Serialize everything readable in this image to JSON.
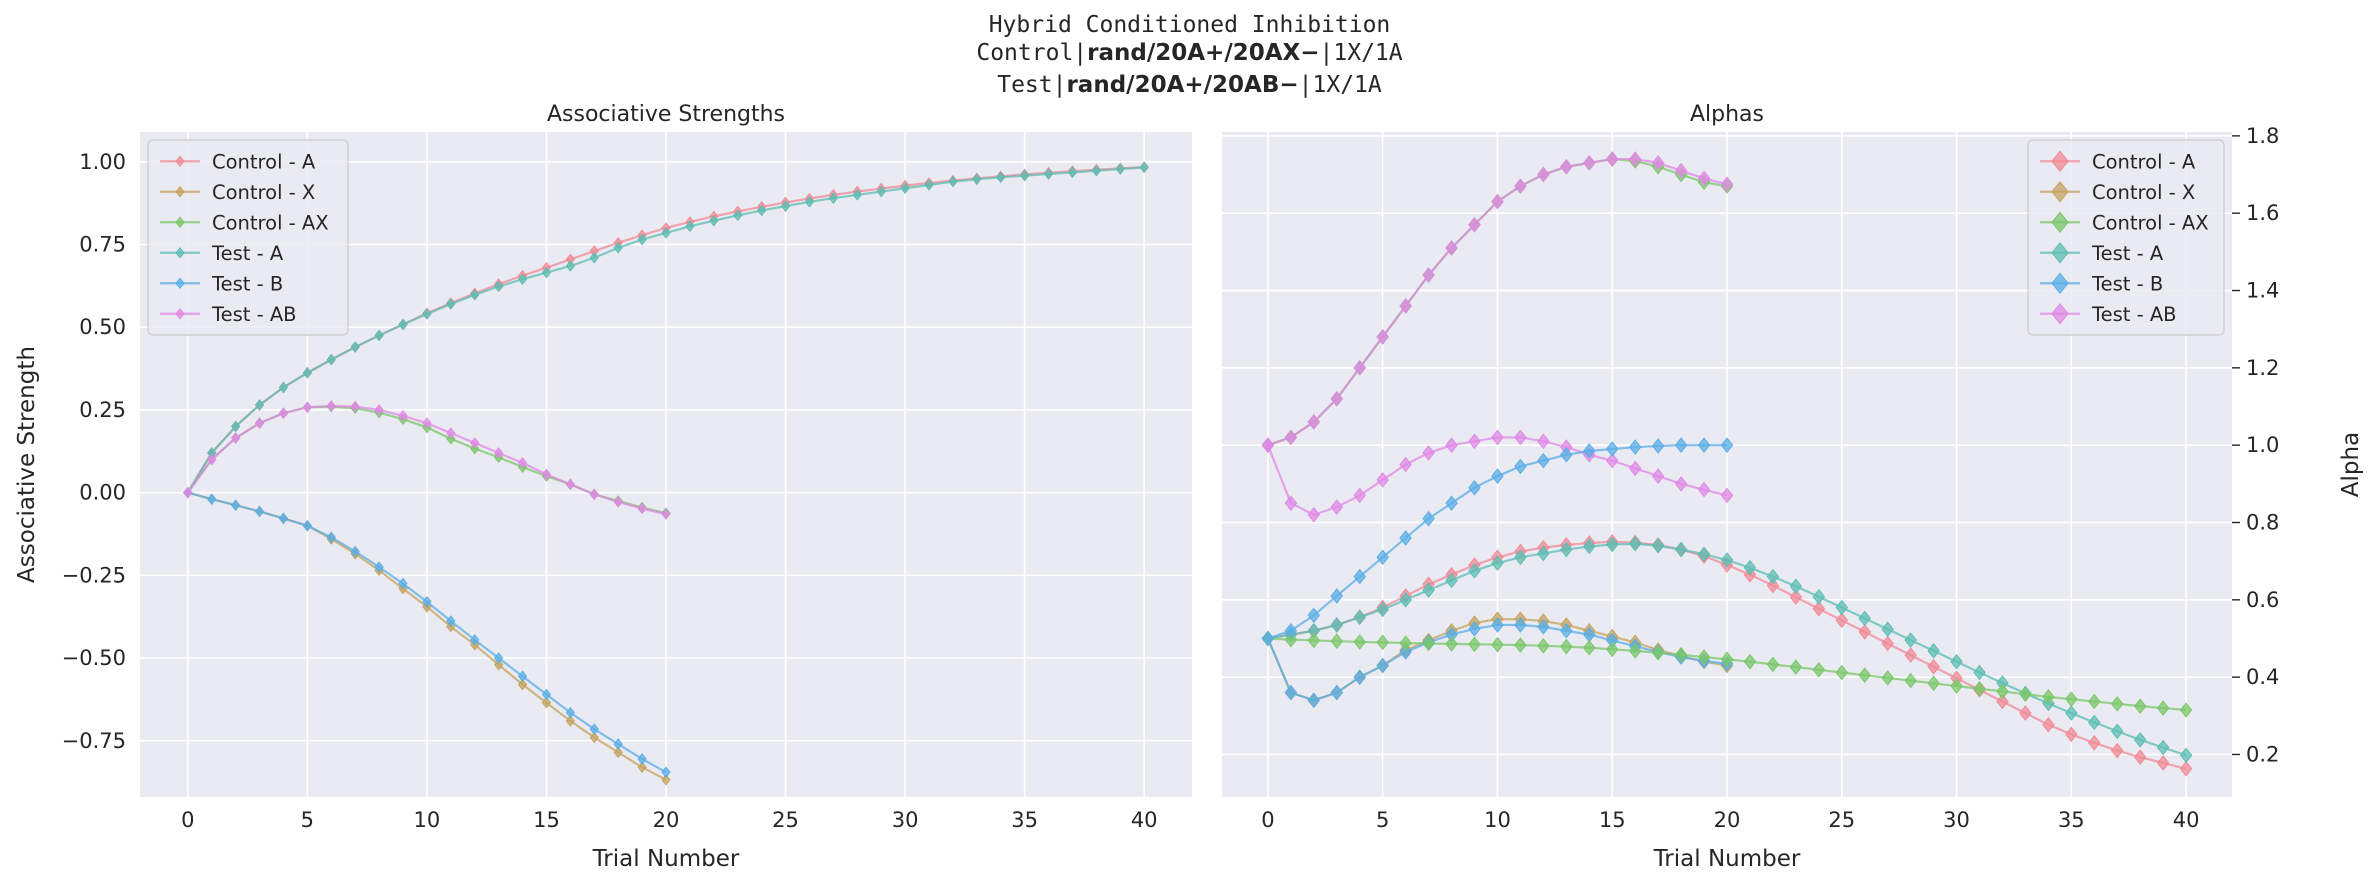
{
  "figure": {
    "title_line1": "Hybrid Conditioned Inhibition",
    "title_line2_prefix": "Control|",
    "title_line2_bold": "rand/20A+/20AX−",
    "title_line2_suffix": "|1X/1A",
    "title_line3_prefix": "Test|",
    "title_line3_bold": "rand/20A+/20AB−",
    "title_line3_suffix": "|1X/1A"
  },
  "colors": {
    "plot_bg": "#eaeaf2",
    "grid": "#ffffff",
    "Control - A": "#f08a95",
    "Control - X": "#c4a35f",
    "Control - AX": "#79c76a",
    "Test - A": "#5cbdb3",
    "Test - B": "#5aaee6",
    "Test - AB": "#e088e6"
  },
  "chart_data": [
    {
      "type": "line",
      "title": "Associative Strengths",
      "xlabel": "Trial Number",
      "ylabel": "Associative Strength",
      "xlim": [
        -2,
        42
      ],
      "ylim": [
        -0.92,
        1.09
      ],
      "xticks": [
        0,
        5,
        10,
        15,
        20,
        25,
        30,
        35,
        40
      ],
      "yticks": [
        -0.75,
        -0.5,
        -0.25,
        0.0,
        0.25,
        0.5,
        0.75,
        1.0
      ],
      "ytick_labels": [
        "−0.75",
        "−0.50",
        "−0.25",
        "0.00",
        "0.25",
        "0.50",
        "0.75",
        "1.00"
      ],
      "grid": true,
      "legend": "top-left",
      "series": [
        {
          "name": "Control - A",
          "x": [
            0,
            1,
            2,
            3,
            4,
            5,
            6,
            7,
            8,
            9,
            10,
            11,
            12,
            13,
            14,
            15,
            16,
            17,
            18,
            19,
            20,
            21,
            22,
            23,
            24,
            25,
            26,
            27,
            28,
            29,
            30,
            31,
            32,
            33,
            34,
            35,
            36,
            37,
            38,
            39,
            40
          ],
          "values": [
            0,
            0.12,
            0.2,
            0.265,
            0.318,
            0.362,
            0.402,
            0.44,
            0.475,
            0.508,
            0.542,
            0.573,
            0.602,
            0.63,
            0.656,
            0.68,
            0.705,
            0.73,
            0.755,
            0.778,
            0.8,
            0.818,
            0.835,
            0.85,
            0.864,
            0.877,
            0.889,
            0.9,
            0.91,
            0.919,
            0.928,
            0.936,
            0.943,
            0.95,
            0.956,
            0.962,
            0.967,
            0.972,
            0.976,
            0.98,
            0.984
          ]
        },
        {
          "name": "Control - X",
          "x": [
            0,
            1,
            2,
            3,
            4,
            5,
            6,
            7,
            8,
            9,
            10,
            11,
            12,
            13,
            14,
            15,
            16,
            17,
            18,
            19,
            20
          ],
          "values": [
            0,
            -0.02,
            -0.038,
            -0.057,
            -0.078,
            -0.1,
            -0.14,
            -0.185,
            -0.235,
            -0.29,
            -0.345,
            -0.405,
            -0.46,
            -0.52,
            -0.58,
            -0.635,
            -0.69,
            -0.74,
            -0.785,
            -0.83,
            -0.868
          ]
        },
        {
          "name": "Control - AX",
          "x": [
            0,
            1,
            2,
            3,
            4,
            5,
            6,
            7,
            8,
            9,
            10,
            11,
            12,
            13,
            14,
            15,
            16,
            17,
            18,
            19,
            20
          ],
          "values": [
            0,
            0.1,
            0.165,
            0.21,
            0.24,
            0.258,
            0.26,
            0.255,
            0.242,
            0.222,
            0.197,
            0.163,
            0.133,
            0.107,
            0.077,
            0.05,
            0.025,
            -0.005,
            -0.025,
            -0.045,
            -0.062
          ]
        },
        {
          "name": "Test - A",
          "x": [
            0,
            1,
            2,
            3,
            4,
            5,
            6,
            7,
            8,
            9,
            10,
            11,
            12,
            13,
            14,
            15,
            16,
            17,
            18,
            19,
            20,
            21,
            22,
            23,
            24,
            25,
            26,
            27,
            28,
            29,
            30,
            31,
            32,
            33,
            34,
            35,
            36,
            37,
            38,
            39,
            40
          ],
          "values": [
            0,
            0.12,
            0.2,
            0.265,
            0.318,
            0.362,
            0.402,
            0.44,
            0.475,
            0.508,
            0.54,
            0.57,
            0.598,
            0.623,
            0.645,
            0.665,
            0.685,
            0.71,
            0.74,
            0.765,
            0.785,
            0.805,
            0.822,
            0.838,
            0.853,
            0.866,
            0.879,
            0.89,
            0.9,
            0.91,
            0.92,
            0.93,
            0.94,
            0.947,
            0.953,
            0.958,
            0.963,
            0.968,
            0.973,
            0.978,
            0.983
          ]
        },
        {
          "name": "Test - B",
          "x": [
            0,
            1,
            2,
            3,
            4,
            5,
            6,
            7,
            8,
            9,
            10,
            11,
            12,
            13,
            14,
            15,
            16,
            17,
            18,
            19,
            20
          ],
          "values": [
            0,
            -0.02,
            -0.038,
            -0.057,
            -0.078,
            -0.1,
            -0.135,
            -0.178,
            -0.225,
            -0.275,
            -0.33,
            -0.388,
            -0.445,
            -0.5,
            -0.555,
            -0.61,
            -0.665,
            -0.715,
            -0.76,
            -0.805,
            -0.845
          ]
        },
        {
          "name": "Test - AB",
          "x": [
            0,
            1,
            2,
            3,
            4,
            5,
            6,
            7,
            8,
            9,
            10,
            11,
            12,
            13,
            14,
            15,
            16,
            17,
            18,
            19,
            20
          ],
          "values": [
            0,
            0.1,
            0.165,
            0.21,
            0.24,
            0.258,
            0.262,
            0.26,
            0.25,
            0.232,
            0.21,
            0.18,
            0.15,
            0.12,
            0.09,
            0.055,
            0.025,
            -0.005,
            -0.028,
            -0.048,
            -0.065
          ]
        }
      ]
    },
    {
      "type": "line",
      "title": "Alphas",
      "xlabel": "Trial Number",
      "ylabel": "Alpha",
      "xlim": [
        -2,
        42
      ],
      "ylim": [
        0.09,
        1.81
      ],
      "xticks": [
        0,
        5,
        10,
        15,
        20,
        25,
        30,
        35,
        40
      ],
      "yticks": [
        0.2,
        0.4,
        0.6,
        0.8,
        1.0,
        1.2,
        1.4,
        1.6,
        1.8
      ],
      "ytick_labels": [
        "0.2",
        "0.4",
        "0.6",
        "0.8",
        "1.0",
        "1.2",
        "1.4",
        "1.6",
        "1.8"
      ],
      "yaxis_side": "right",
      "grid": true,
      "legend": "top-right",
      "series": [
        {
          "name": "Control - A",
          "x": [
            0,
            1,
            2,
            3,
            4,
            5,
            6,
            7,
            8,
            9,
            10,
            11,
            12,
            13,
            14,
            15,
            16,
            17,
            18,
            19,
            20,
            21,
            22,
            23,
            24,
            25,
            26,
            27,
            28,
            29,
            30,
            31,
            32,
            33,
            34,
            35,
            36,
            37,
            38,
            39,
            40
          ],
          "values": [
            0.5,
            0.51,
            0.52,
            0.535,
            0.555,
            0.58,
            0.61,
            0.64,
            0.665,
            0.69,
            0.71,
            0.725,
            0.735,
            0.742,
            0.747,
            0.75,
            0.748,
            0.742,
            0.73,
            0.713,
            0.69,
            0.665,
            0.637,
            0.607,
            0.577,
            0.547,
            0.517,
            0.487,
            0.457,
            0.427,
            0.397,
            0.367,
            0.337,
            0.307,
            0.277,
            0.252,
            0.23,
            0.21,
            0.193,
            0.178,
            0.163
          ]
        },
        {
          "name": "Control - X",
          "x": [
            0,
            1,
            2,
            3,
            4,
            5,
            6,
            7,
            8,
            9,
            10,
            11,
            12,
            13,
            14,
            15,
            16,
            17,
            18,
            19,
            20
          ],
          "values": [
            0.5,
            0.36,
            0.34,
            0.36,
            0.4,
            0.43,
            0.47,
            0.495,
            0.52,
            0.54,
            0.55,
            0.55,
            0.545,
            0.535,
            0.52,
            0.505,
            0.49,
            0.47,
            0.455,
            0.44,
            0.43
          ]
        },
        {
          "name": "Control - AX",
          "x": [
            0,
            1,
            2,
            3,
            4,
            5,
            6,
            7,
            8,
            9,
            10,
            11,
            12,
            13,
            14,
            15,
            16,
            17,
            18,
            19,
            20
          ],
          "values": [
            1.0,
            1.02,
            1.06,
            1.12,
            1.2,
            1.28,
            1.36,
            1.44,
            1.51,
            1.57,
            1.63,
            1.67,
            1.7,
            1.72,
            1.73,
            1.74,
            1.735,
            1.72,
            1.7,
            1.68,
            1.67
          ]
        },
        {
          "name": "Test - A",
          "x": [
            0,
            1,
            2,
            3,
            4,
            5,
            6,
            7,
            8,
            9,
            10,
            11,
            12,
            13,
            14,
            15,
            16,
            17,
            18,
            19,
            20,
            21,
            22,
            23,
            24,
            25,
            26,
            27,
            28,
            29,
            30,
            31,
            32,
            33,
            34,
            35,
            36,
            37,
            38,
            39,
            40
          ],
          "values": [
            0.5,
            0.51,
            0.52,
            0.535,
            0.555,
            0.575,
            0.6,
            0.625,
            0.65,
            0.675,
            0.695,
            0.71,
            0.72,
            0.73,
            0.738,
            0.743,
            0.745,
            0.74,
            0.73,
            0.718,
            0.703,
            0.683,
            0.66,
            0.635,
            0.608,
            0.58,
            0.552,
            0.524,
            0.496,
            0.468,
            0.44,
            0.412,
            0.385,
            0.358,
            0.332,
            0.307,
            0.283,
            0.26,
            0.238,
            0.218,
            0.198
          ]
        },
        {
          "name": "Test - B",
          "x": [
            0,
            1,
            2,
            3,
            4,
            5,
            6,
            7,
            8,
            9,
            10,
            11,
            12,
            13,
            14,
            15,
            16,
            17,
            18,
            19,
            20
          ],
          "values": [
            0.5,
            0.36,
            0.34,
            0.36,
            0.4,
            0.43,
            0.465,
            0.49,
            0.51,
            0.525,
            0.535,
            0.535,
            0.53,
            0.52,
            0.51,
            0.495,
            0.48,
            0.465,
            0.452,
            0.442,
            0.435
          ]
        },
        {
          "name": "Test - AB",
          "x": [
            0,
            1,
            2,
            3,
            4,
            5,
            6,
            7,
            8,
            9,
            10,
            11,
            12,
            13,
            14,
            15,
            16,
            17,
            18,
            19,
            20
          ],
          "values": [
            1.0,
            1.02,
            1.06,
            1.12,
            1.2,
            1.28,
            1.36,
            1.44,
            1.51,
            1.57,
            1.63,
            1.67,
            1.7,
            1.72,
            1.73,
            1.74,
            1.74,
            1.73,
            1.71,
            1.69,
            1.675
          ]
        },
        {
          "name": "",
          "x": [
            0,
            1,
            2,
            3,
            4,
            5,
            6,
            7,
            8,
            9,
            10,
            11,
            12,
            13,
            14,
            15,
            16,
            17,
            18,
            19,
            20,
            21,
            22,
            23,
            24,
            25,
            26,
            27,
            28,
            29,
            30,
            31,
            32,
            33,
            34,
            35,
            36,
            37,
            38,
            39,
            40
          ],
          "values": [
            0.5,
            0.497,
            0.495,
            0.493,
            0.491,
            0.49,
            0.488,
            0.487,
            0.486,
            0.485,
            0.484,
            0.483,
            0.481,
            0.479,
            0.476,
            0.472,
            0.468,
            0.463,
            0.458,
            0.452,
            0.446,
            0.44,
            0.433,
            0.426,
            0.419,
            0.412,
            0.405,
            0.398,
            0.391,
            0.384,
            0.377,
            0.37,
            0.363,
            0.356,
            0.349,
            0.343,
            0.337,
            0.331,
            0.325,
            0.32,
            0.315
          ]
        },
        {
          "name": "",
          "x": [
            0,
            1,
            2,
            3,
            4,
            5,
            6,
            7,
            8,
            9,
            10,
            11,
            12,
            13,
            14,
            15,
            16,
            17,
            18,
            19,
            20
          ],
          "values": [
            1.0,
            0.85,
            0.82,
            0.84,
            0.87,
            0.91,
            0.95,
            0.98,
            1.0,
            1.01,
            1.02,
            1.02,
            1.01,
            0.995,
            0.975,
            0.96,
            0.94,
            0.92,
            0.9,
            0.885,
            0.87
          ]
        },
        {
          "name": "",
          "x": [
            0,
            1,
            2,
            3,
            4,
            5,
            6,
            7,
            8,
            9,
            10,
            11,
            12,
            13,
            14,
            15,
            16,
            17,
            18,
            19,
            20
          ],
          "values": [
            0.5,
            0.52,
            0.56,
            0.61,
            0.66,
            0.71,
            0.76,
            0.81,
            0.85,
            0.89,
            0.92,
            0.945,
            0.96,
            0.975,
            0.985,
            0.99,
            0.995,
            0.998,
            1.0,
            1.0,
            1.0
          ]
        }
      ]
    }
  ]
}
